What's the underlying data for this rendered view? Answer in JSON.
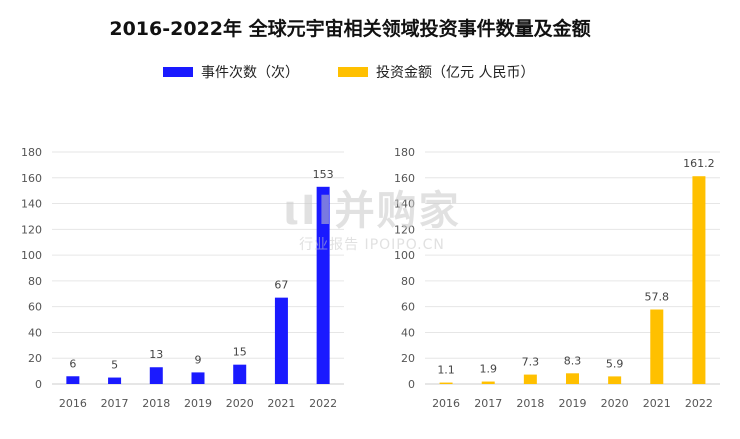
{
  "title": "2016-2022年 全球元宇宙相关领域投资事件数量及金额",
  "legend": [
    {
      "label": "事件次数（次）",
      "color": "#1a1aff"
    },
    {
      "label": "投资金额（亿元 人民币）",
      "color": "#ffc000"
    }
  ],
  "watermark": {
    "main": "ιΙΙ并购家",
    "sub": "行业报告 IPOIPO.CN"
  },
  "chart_data": [
    {
      "type": "bar",
      "categories": [
        "2016",
        "2017",
        "2018",
        "2019",
        "2020",
        "2021",
        "2022"
      ],
      "values": [
        6,
        5,
        13,
        9,
        15,
        67,
        153
      ],
      "value_labels": [
        "6",
        "5",
        "13",
        "9",
        "15",
        "67",
        "153"
      ],
      "series_name": "事件次数（次）",
      "ylim": [
        0,
        180
      ],
      "yticks": [
        "0",
        "20",
        "40",
        "60",
        "80",
        "100",
        "120",
        "140",
        "160",
        "180"
      ],
      "color": "#1a1aff",
      "grid": true
    },
    {
      "type": "bar",
      "categories": [
        "2016",
        "2017",
        "2018",
        "2019",
        "2020",
        "2021",
        "2022"
      ],
      "values": [
        1.1,
        1.9,
        7.3,
        8.3,
        5.9,
        57.8,
        161.2
      ],
      "value_labels": [
        "1.1",
        "1.9",
        "7.3",
        "8.3",
        "5.9",
        "57.8",
        "161.2"
      ],
      "series_name": "投资金额（亿元 人民币）",
      "ylim": [
        0,
        180
      ],
      "yticks": [
        "0",
        "20",
        "40",
        "60",
        "80",
        "100",
        "120",
        "140",
        "160",
        "180"
      ],
      "color": "#ffc000",
      "grid": true
    }
  ]
}
